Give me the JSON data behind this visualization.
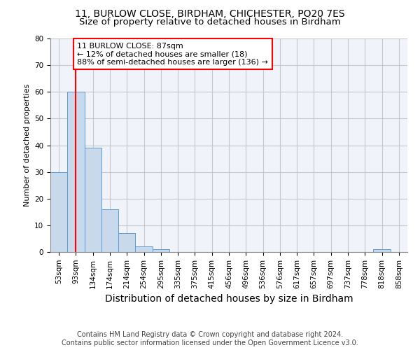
{
  "title1": "11, BURLOW CLOSE, BIRDHAM, CHICHESTER, PO20 7ES",
  "title2": "Size of property relative to detached houses in Birdham",
  "xlabel": "Distribution of detached houses by size in Birdham",
  "ylabel": "Number of detached properties",
  "categories": [
    "53sqm",
    "93sqm",
    "134sqm",
    "174sqm",
    "214sqm",
    "254sqm",
    "295sqm",
    "335sqm",
    "375sqm",
    "415sqm",
    "456sqm",
    "496sqm",
    "536sqm",
    "576sqm",
    "617sqm",
    "657sqm",
    "697sqm",
    "737sqm",
    "778sqm",
    "818sqm",
    "858sqm"
  ],
  "values": [
    30,
    60,
    39,
    16,
    7,
    2,
    1,
    0,
    0,
    0,
    0,
    0,
    0,
    0,
    0,
    0,
    0,
    0,
    0,
    1,
    0
  ],
  "bar_color": "#c9d9ec",
  "bar_edge_color": "#5b9bd5",
  "grid_color": "#c8c8c8",
  "vline_x": 1.0,
  "vline_color": "red",
  "annotation_line1": "11 BURLOW CLOSE: 87sqm",
  "annotation_line2": "← 12% of detached houses are smaller (18)",
  "annotation_line3": "88% of semi-detached houses are larger (136) →",
  "annotation_box_color": "white",
  "annotation_box_edge_color": "red",
  "ylim": [
    0,
    80
  ],
  "yticks": [
    0,
    10,
    20,
    30,
    40,
    50,
    60,
    70,
    80
  ],
  "footer1": "Contains HM Land Registry data © Crown copyright and database right 2024.",
  "footer2": "Contains public sector information licensed under the Open Government Licence v3.0.",
  "title1_fontsize": 10,
  "title2_fontsize": 9.5,
  "xlabel_fontsize": 10,
  "ylabel_fontsize": 8,
  "tick_fontsize": 7.5,
  "annotation_fontsize": 8,
  "footer_fontsize": 7
}
